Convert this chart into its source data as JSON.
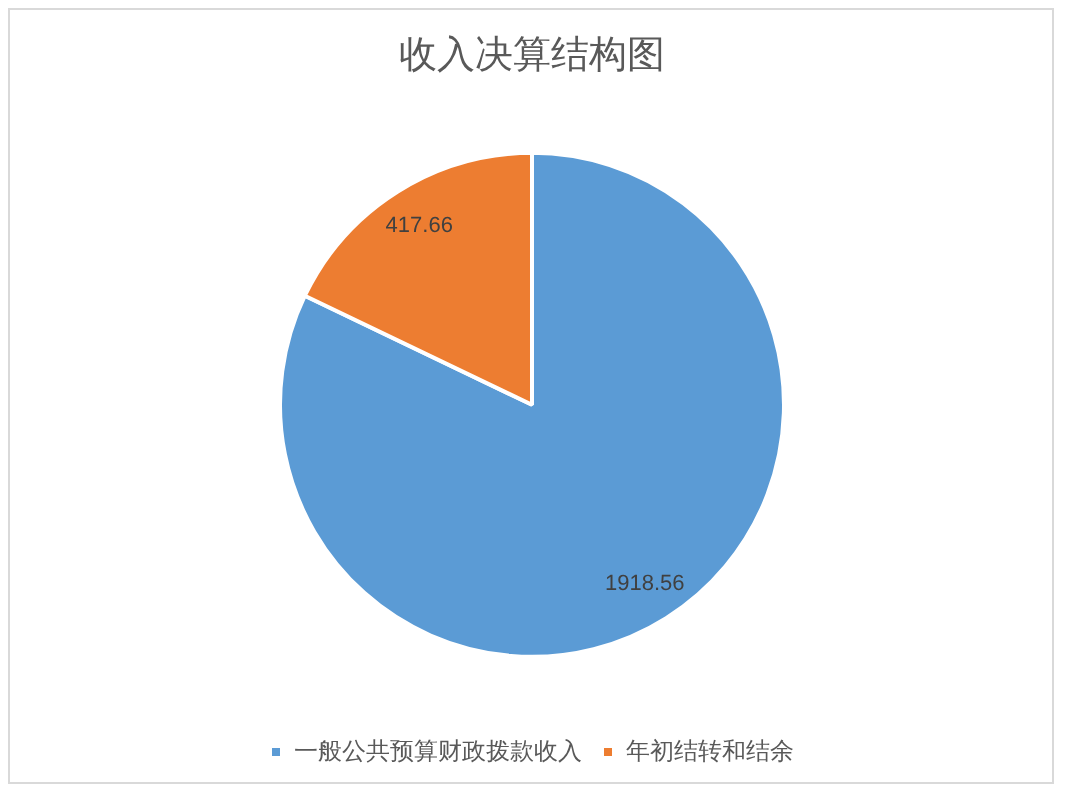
{
  "chart_data": {
    "type": "pie",
    "title": "收入决算结构图",
    "categories": [
      "一般公共预算财政拨款收入",
      "年初结转和结余"
    ],
    "values": [
      1918.56,
      417.66
    ],
    "colors": [
      "#5b9bd5",
      "#ed7d31"
    ],
    "data_labels": true,
    "legend": "bottom"
  }
}
